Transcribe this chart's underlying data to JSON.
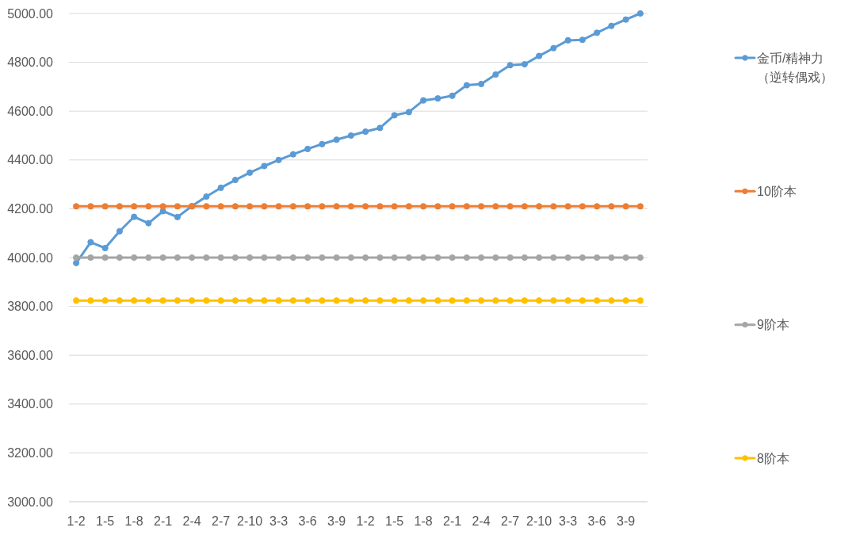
{
  "chart_data": {
    "type": "line",
    "categories": [
      "1-2",
      null,
      "1-5",
      null,
      "1-8",
      null,
      "2-1",
      null,
      "2-4",
      null,
      "2-7",
      null,
      "2-10",
      null,
      "3-3",
      null,
      "3-6",
      null,
      "3-9",
      null,
      "1-2",
      null,
      "1-5",
      null,
      "1-8",
      null,
      "2-1",
      null,
      "2-4",
      null,
      "2-7",
      null,
      "2-10",
      null,
      "3-3",
      null,
      "3-6",
      null,
      "3-9",
      null
    ],
    "ylim": [
      3000,
      5000
    ],
    "yticks": [
      {
        "value": 3000,
        "label": "3000.00"
      },
      {
        "value": 3200,
        "label": "3200.00"
      },
      {
        "value": 3400,
        "label": "3400.00"
      },
      {
        "value": 3600,
        "label": "3600.00"
      },
      {
        "value": 3800,
        "label": "3800.00"
      },
      {
        "value": 4000,
        "label": "4000.00"
      },
      {
        "value": 4200,
        "label": "4200.00"
      },
      {
        "value": 4400,
        "label": "4400.00"
      },
      {
        "value": 4600,
        "label": "4600.00"
      },
      {
        "value": 4800,
        "label": "4800.00"
      },
      {
        "value": 5000,
        "label": "5000.00"
      }
    ],
    "grid": "y",
    "legend": "right",
    "marker": "circle",
    "line_style": "solid",
    "series": [
      {
        "name": "金币/精神力（逆转偶戏）",
        "color": "#5b9bd5",
        "values": [
          3978,
          4063,
          4039,
          4108,
          4167,
          4141,
          4190,
          4166,
          4211,
          4250,
          4286,
          4318,
          4348,
          4375,
          4400,
          4423,
          4445,
          4465,
          4483,
          4500,
          4516,
          4531,
          4583,
          4596,
          4644,
          4652,
          4663,
          4706,
          4711,
          4750,
          4788,
          4792,
          4826,
          4858,
          4890,
          4892,
          4921,
          4949,
          4975,
          5000
        ]
      },
      {
        "name": "10阶本",
        "color": "#ed7d31",
        "values": [
          4210,
          4210,
          4210,
          4210,
          4210,
          4210,
          4210,
          4210,
          4210,
          4210,
          4210,
          4210,
          4210,
          4210,
          4210,
          4210,
          4210,
          4210,
          4210,
          4210,
          4210,
          4210,
          4210,
          4210,
          4210,
          4210,
          4210,
          4210,
          4210,
          4210,
          4210,
          4210,
          4210,
          4210,
          4210,
          4210,
          4210,
          4210,
          4210,
          4210
        ]
      },
      {
        "name": "9阶本",
        "color": "#a5a5a5",
        "values": [
          4000,
          4000,
          4000,
          4000,
          4000,
          4000,
          4000,
          4000,
          4000,
          4000,
          4000,
          4000,
          4000,
          4000,
          4000,
          4000,
          4000,
          4000,
          4000,
          4000,
          4000,
          4000,
          4000,
          4000,
          4000,
          4000,
          4000,
          4000,
          4000,
          4000,
          4000,
          4000,
          4000,
          4000,
          4000,
          4000,
          4000,
          4000,
          4000,
          4000
        ]
      },
      {
        "name": "8阶本",
        "color": "#ffc000",
        "values": [
          3824,
          3824,
          3824,
          3824,
          3824,
          3824,
          3824,
          3824,
          3824,
          3824,
          3824,
          3824,
          3824,
          3824,
          3824,
          3824,
          3824,
          3824,
          3824,
          3824,
          3824,
          3824,
          3824,
          3824,
          3824,
          3824,
          3824,
          3824,
          3824,
          3824,
          3824,
          3824,
          3824,
          3824,
          3824,
          3824,
          3824,
          3824,
          3824,
          3824
        ]
      }
    ]
  }
}
